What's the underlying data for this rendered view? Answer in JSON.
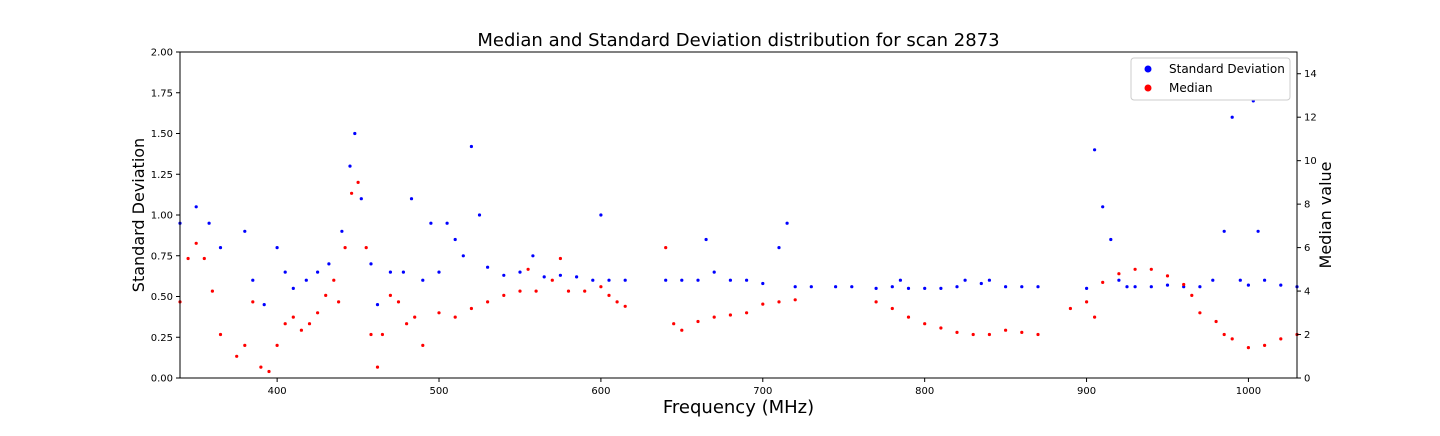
{
  "chart_data": {
    "type": "scatter",
    "title": "Median and Standard Deviation distribution for scan 2873",
    "xlabel": "Frequency (MHz)",
    "ylabel_left": "Standard Deviation",
    "ylabel_right": "Median value",
    "xlim": [
      340,
      1030
    ],
    "ylim_left": [
      0,
      2.0
    ],
    "ylim_right": [
      0,
      15
    ],
    "x_ticks": [
      400,
      500,
      600,
      700,
      800,
      900,
      1000
    ],
    "y_left_ticks": [
      "0.00",
      "0.25",
      "0.50",
      "0.75",
      "1.00",
      "1.25",
      "1.50",
      "1.75",
      "2.00"
    ],
    "y_right_ticks": [
      0,
      2,
      4,
      6,
      8,
      10,
      12,
      14
    ],
    "grid": false,
    "legend_position": "top-right",
    "colors": {
      "std": "#0000ff",
      "median": "#ff0000"
    },
    "series": [
      {
        "name": "Standard Deviation",
        "axis": "left",
        "color": "#0000ff",
        "x": [
          340,
          350,
          358,
          365,
          380,
          385,
          392,
          400,
          405,
          410,
          418,
          425,
          432,
          440,
          445,
          448,
          452,
          458,
          462,
          470,
          478,
          483,
          490,
          495,
          500,
          505,
          510,
          515,
          520,
          525,
          530,
          540,
          550,
          558,
          565,
          575,
          585,
          595,
          600,
          605,
          615,
          640,
          650,
          660,
          665,
          670,
          680,
          690,
          700,
          710,
          715,
          720,
          730,
          745,
          755,
          770,
          780,
          785,
          790,
          800,
          810,
          820,
          825,
          835,
          840,
          850,
          860,
          870,
          900,
          905,
          910,
          915,
          920,
          925,
          930,
          940,
          950,
          960,
          970,
          978,
          985,
          990,
          995,
          1000,
          1003,
          1006,
          1010,
          1020,
          1030
        ],
        "y": [
          0.95,
          1.05,
          0.95,
          0.8,
          0.9,
          0.6,
          0.45,
          0.8,
          0.65,
          0.55,
          0.6,
          0.65,
          0.7,
          0.9,
          1.3,
          1.5,
          1.1,
          0.7,
          0.45,
          0.65,
          0.65,
          1.1,
          0.6,
          0.95,
          0.65,
          0.95,
          0.85,
          0.75,
          1.42,
          1.0,
          0.68,
          0.63,
          0.65,
          0.75,
          0.62,
          0.63,
          0.62,
          0.6,
          1.0,
          0.6,
          0.6,
          0.6,
          0.6,
          0.6,
          0.85,
          0.65,
          0.6,
          0.6,
          0.58,
          0.8,
          0.95,
          0.56,
          0.56,
          0.56,
          0.56,
          0.55,
          0.56,
          0.6,
          0.55,
          0.55,
          0.55,
          0.56,
          0.6,
          0.58,
          0.6,
          0.56,
          0.56,
          0.56,
          0.55,
          1.4,
          1.05,
          0.85,
          0.6,
          0.56,
          0.56,
          0.56,
          0.57,
          0.56,
          0.56,
          0.6,
          0.9,
          1.6,
          0.6,
          0.57,
          1.7,
          0.9,
          0.6,
          0.57,
          0.56
        ]
      },
      {
        "name": "Median",
        "axis": "right",
        "color": "#ff0000",
        "x": [
          340,
          345,
          350,
          355,
          360,
          365,
          375,
          380,
          385,
          390,
          395,
          400,
          405,
          410,
          415,
          420,
          425,
          430,
          435,
          438,
          442,
          446,
          450,
          455,
          458,
          462,
          465,
          470,
          475,
          480,
          485,
          490,
          500,
          510,
          520,
          530,
          540,
          550,
          555,
          560,
          570,
          575,
          580,
          590,
          600,
          605,
          610,
          615,
          640,
          645,
          650,
          660,
          670,
          680,
          690,
          700,
          710,
          720,
          770,
          780,
          790,
          800,
          810,
          820,
          830,
          840,
          850,
          860,
          870,
          890,
          900,
          905,
          910,
          920,
          930,
          940,
          950,
          960,
          965,
          970,
          980,
          985,
          990,
          1000,
          1010,
          1020,
          1030
        ],
        "y": [
          3.5,
          5.5,
          6.2,
          5.5,
          4.0,
          2.0,
          1.0,
          1.5,
          3.5,
          0.5,
          0.3,
          1.5,
          2.5,
          2.8,
          2.2,
          2.5,
          3.0,
          3.8,
          4.5,
          3.5,
          6.0,
          8.5,
          9.0,
          6.0,
          2.0,
          0.5,
          2.0,
          3.8,
          3.5,
          2.5,
          2.8,
          1.5,
          3.0,
          2.8,
          3.2,
          3.5,
          3.8,
          4.0,
          5.0,
          4.0,
          4.5,
          5.5,
          4.0,
          4.0,
          4.2,
          3.8,
          3.5,
          3.3,
          6.0,
          2.5,
          2.2,
          2.6,
          2.8,
          2.9,
          3.0,
          3.4,
          3.5,
          3.6,
          3.5,
          3.2,
          2.8,
          2.5,
          2.3,
          2.1,
          2.0,
          2.0,
          2.2,
          2.1,
          2.0,
          3.2,
          3.5,
          2.8,
          4.4,
          4.8,
          5.0,
          5.0,
          4.7,
          4.3,
          3.8,
          3.0,
          2.6,
          2.0,
          1.8,
          1.4,
          1.5,
          1.8,
          2.0
        ]
      }
    ]
  }
}
